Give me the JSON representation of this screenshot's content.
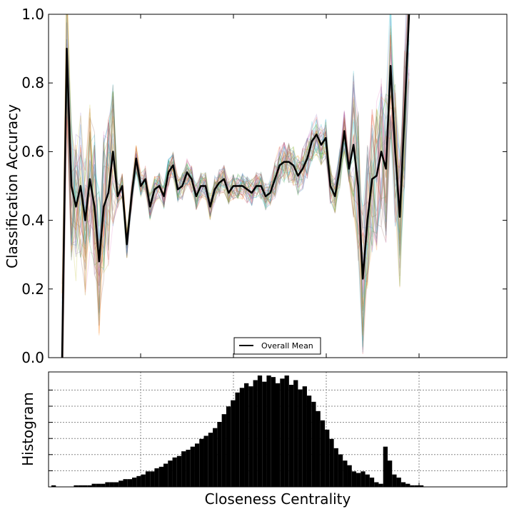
{
  "chart_data": [
    {
      "type": "line",
      "title": "",
      "xlabel": "",
      "ylabel": "Classification Accuracy",
      "ylim": [
        0.0,
        1.0
      ],
      "y_ticks": [
        "0.0",
        "0.2",
        "0.4",
        "0.6",
        "0.8",
        "1.0"
      ],
      "x_tick_labels_visible": false,
      "grid": false,
      "legend_position": "bottom-center",
      "legend": [
        {
          "name": "Overall Mean",
          "color": "#000000"
        }
      ],
      "series": [
        {
          "name": "Overall Mean",
          "color": "#000000",
          "values": [
            0.0,
            0.9,
            0.5,
            0.44,
            0.5,
            0.4,
            0.52,
            0.44,
            0.28,
            0.44,
            0.48,
            0.6,
            0.47,
            0.5,
            0.33,
            0.47,
            0.58,
            0.5,
            0.52,
            0.44,
            0.49,
            0.5,
            0.47,
            0.54,
            0.56,
            0.49,
            0.5,
            0.54,
            0.52,
            0.47,
            0.5,
            0.5,
            0.44,
            0.49,
            0.51,
            0.52,
            0.48,
            0.5,
            0.5,
            0.5,
            0.49,
            0.48,
            0.5,
            0.5,
            0.47,
            0.48,
            0.52,
            0.56,
            0.57,
            0.57,
            0.56,
            0.53,
            0.55,
            0.58,
            0.63,
            0.65,
            0.62,
            0.64,
            0.5,
            0.47,
            0.55,
            0.66,
            0.55,
            0.62,
            0.5,
            0.23,
            0.4,
            0.52,
            0.53,
            0.6,
            0.55,
            0.85,
            0.6,
            0.41,
            0.7,
            1.0
          ]
        }
      ],
      "background_runs": {
        "description_colors": [
          "#1f77b4",
          "#ff7f0e",
          "#2ca02c",
          "#d62728",
          "#9467bd",
          "#8c564b",
          "#e377c2",
          "#7f7f7f",
          "#bcbd22",
          "#17becf"
        ]
      }
    },
    {
      "type": "bar",
      "title": "",
      "xlabel": "Closeness Centrality",
      "ylabel": "Histogram",
      "x_tick_labels_visible": false,
      "y_tick_labels_visible": false,
      "grid": true,
      "color": "#000000",
      "values": [
        1,
        0,
        0,
        0,
        0,
        1,
        1,
        1,
        1,
        2,
        2,
        2,
        3,
        3,
        3,
        4,
        5,
        5,
        6,
        7,
        8,
        10,
        10,
        12,
        13,
        15,
        17,
        19,
        20,
        23,
        24,
        26,
        28,
        31,
        33,
        35,
        38,
        42,
        47,
        52,
        56,
        61,
        64,
        67,
        65,
        69,
        72,
        68,
        72,
        71,
        67,
        70,
        72,
        66,
        69,
        63,
        65,
        59,
        55,
        49,
        43,
        37,
        31,
        25,
        21,
        17,
        14,
        10,
        9,
        10,
        8,
        6,
        3,
        2,
        26,
        17,
        8,
        6,
        3,
        2,
        1,
        1,
        1,
        0,
        0,
        0,
        0,
        0,
        0,
        0,
        0,
        0
      ]
    }
  ]
}
